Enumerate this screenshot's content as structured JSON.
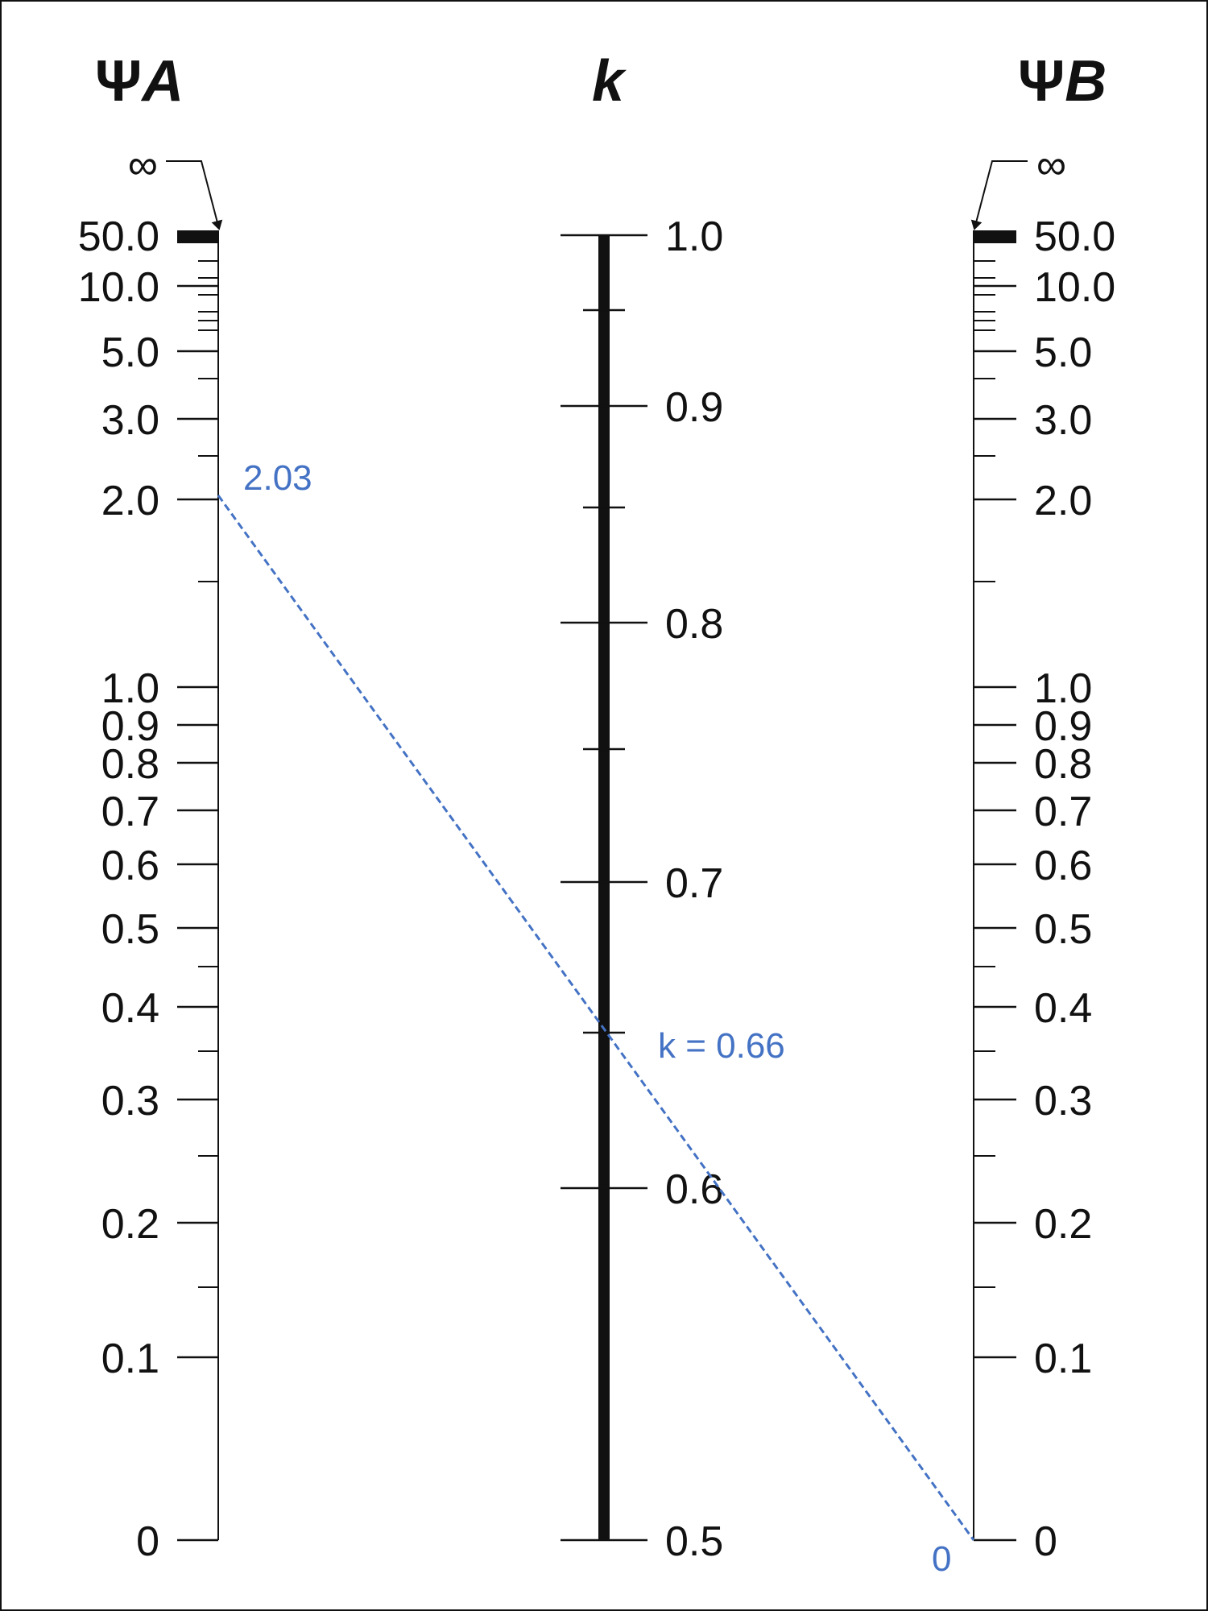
{
  "colors": {
    "ink": "#111111",
    "annotation": "#4472c4"
  },
  "scales": {
    "psi_a": {
      "title_symbol": "Ψ",
      "title_letter": "A",
      "infinity_label": "∞",
      "labels": [
        "50.0",
        "10.0",
        "5.0",
        "3.0",
        "2.0",
        "1.0",
        "0.9",
        "0.8",
        "0.7",
        "0.6",
        "0.5",
        "0.4",
        "0.3",
        "0.2",
        "0.1",
        "0"
      ]
    },
    "k": {
      "title": "k",
      "labels": [
        "1.0",
        "0.9",
        "0.8",
        "0.7",
        "0.6",
        "0.5"
      ]
    },
    "psi_b": {
      "title_symbol": "Ψ",
      "title_letter": "B",
      "infinity_label": "∞",
      "labels": [
        "50.0",
        "10.0",
        "5.0",
        "3.0",
        "2.0",
        "1.0",
        "0.9",
        "0.8",
        "0.7",
        "0.6",
        "0.5",
        "0.4",
        "0.3",
        "0.2",
        "0.1",
        "0"
      ]
    }
  },
  "solution": {
    "psi_a_value": 2.03,
    "psi_b_value": 0,
    "k_value": 0.66,
    "psi_a_label": "2.03",
    "k_label": "k = 0.66",
    "psi_b_label": "0"
  }
}
